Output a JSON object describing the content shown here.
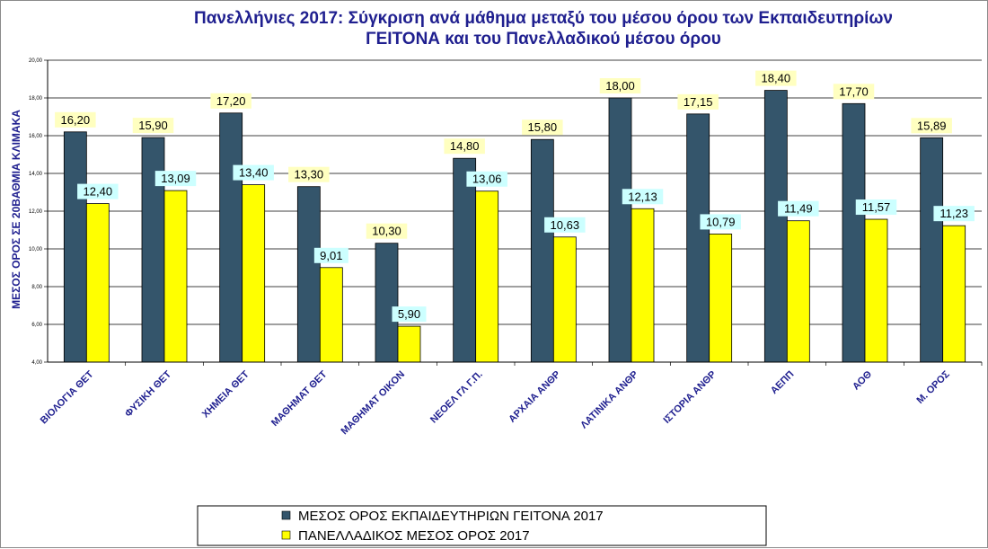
{
  "chart_data": {
    "type": "bar",
    "title": "Πανελλήνιες 2017: Σύγκριση ανά μάθημα μεταξύ του μέσου όρου των Εκπαιδευτηρίων ΓΕΙΤΟΝΑ και του Πανελλαδικού μέσου όρου",
    "title_lines": [
      "Πανελλήνιες 2017: Σύγκριση ανά μάθημα μεταξύ του μέσου όρου των Εκπαιδευτηρίων",
      "ΓΕΙΤΟΝΑ και του Πανελλαδικού μέσου όρου"
    ],
    "xlabel": "",
    "ylabel": "ΜΕΣΟΣ ΟΡΟΣ ΣΕ 20ΒΑΘΜΙΑ ΚΛΙΜΑΚΑ",
    "ylim": [
      4,
      20
    ],
    "yticks": [
      4,
      6,
      8,
      10,
      12,
      14,
      16,
      18,
      20
    ],
    "ytick_labels": [
      "4,00",
      "6,00",
      "8,00",
      "10,00",
      "12,00",
      "14,00",
      "16,00",
      "18,00",
      "20,00"
    ],
    "grid": true,
    "legend_position": "bottom",
    "categories": [
      "ΒΙΟΛΟΓΙΑ ΘΕΤ",
      "ΦΥΣΙΚΗ ΘΕΤ",
      "ΧΗΜΕΙΑ ΘΕΤ",
      "ΜΑΘΗΜΑΤ ΘΕΤ",
      "ΜΑΘΗΜΑΤ ΟΙΚΟΝ",
      "ΝΕΟΕΛ ΓΛ Γ.Π.",
      "ΑΡΧΑΙΑ ΑΝΘΡ",
      "ΛΑΤΙΝΙΚΑ ΑΝΘΡ",
      "ΙΣΤΟΡΙΑ ΑΝΘΡ",
      "ΑΕΠΠ",
      "ΑΟΘ",
      "Μ. ΟΡΟΣ"
    ],
    "series": [
      {
        "name": "ΜΕΣΟΣ ΟΡΟΣ ΕΚΠΑΙΔΕΥΤΗΡΙΩΝ ΓΕΙΤΟΝΑ  2017",
        "color": "#34556b",
        "label_bg": "#ffffc0",
        "values": [
          16.2,
          15.9,
          17.2,
          13.3,
          10.3,
          14.8,
          15.8,
          18.0,
          17.15,
          18.4,
          17.7,
          15.89
        ],
        "labels": [
          "16,20",
          "15,90",
          "17,20",
          "13,30",
          "10,30",
          "14,80",
          "15,80",
          "18,00",
          "17,15",
          "18,40",
          "17,70",
          "15,89"
        ]
      },
      {
        "name": "ΠΑΝΕΛΛΑΔΙΚΟΣ ΜΕΣΟΣ ΟΡΟΣ 2017",
        "color": "#ffff00",
        "label_bg": "#ccffff",
        "values": [
          12.4,
          13.09,
          13.4,
          9.01,
          5.9,
          13.06,
          10.63,
          12.13,
          10.79,
          11.49,
          11.57,
          11.23
        ],
        "labels": [
          "12,40",
          "13,09",
          "13,40",
          "9,01",
          "5,90",
          "13,06",
          "10,63",
          "12,13",
          "10,79",
          "11,49",
          "11,57",
          "11,23"
        ]
      }
    ]
  }
}
